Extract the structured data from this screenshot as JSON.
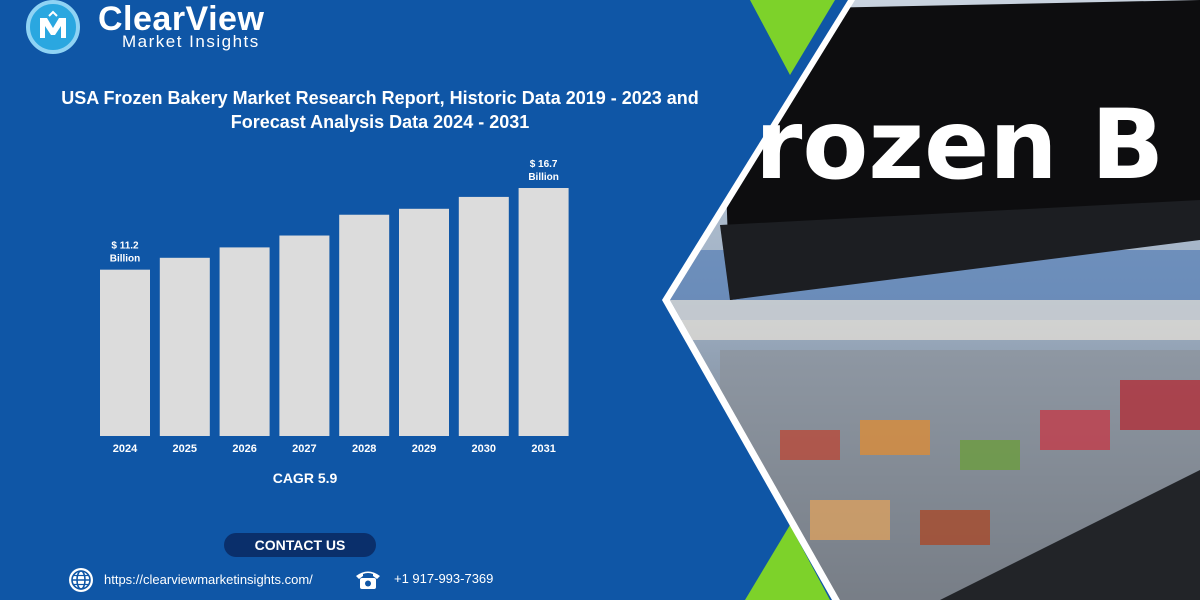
{
  "brand": {
    "name": "ClearView",
    "tagline": "Market Insights"
  },
  "report_title_line1": "USA Frozen Bakery Market Research Report, Historic Data 2019 - 2023 and",
  "report_title_line2": "Forecast Analysis Data 2024 - 2031",
  "chart_data": {
    "type": "bar",
    "categories": [
      "2024",
      "2025",
      "2026",
      "2027",
      "2028",
      "2029",
      "2030",
      "2031"
    ],
    "values": [
      11.2,
      12.0,
      12.7,
      13.5,
      14.9,
      15.3,
      16.1,
      16.7
    ],
    "data_labels": [
      {
        "index": 0,
        "line1": "$ 11.2",
        "line2": "Billion"
      },
      {
        "index": 7,
        "line1": "$ 16.7",
        "line2": "Billion"
      }
    ],
    "title": "",
    "xlabel": "",
    "ylabel": "",
    "ylim": [
      0,
      16.7
    ],
    "grid": false,
    "bar_color": "#dcdcdc"
  },
  "cagr_text": "CAGR 5.9",
  "contact": {
    "heading": "CONTACT US",
    "website": "https://clearviewmarketinsights.com/",
    "phone": "+1 917-993-7369"
  },
  "colors": {
    "background": "#0f56a6",
    "accent_green": "#7dd22a",
    "pill": "#0a2f6b"
  },
  "photo_sign_text": "rozen B"
}
